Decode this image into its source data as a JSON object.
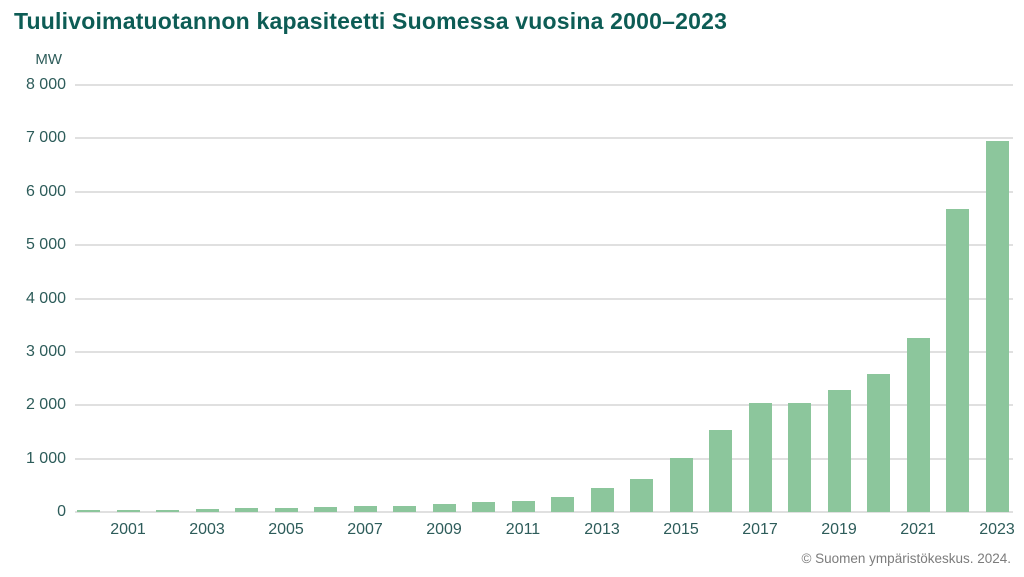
{
  "page": {
    "title": "Tuulivoimatuotannon kapasiteetti Suomessa vuosina 2000–2023",
    "credit": "© Suomen ympäristökeskus. 2024."
  },
  "chart_data": {
    "type": "bar",
    "title": "Tuulivoimatuotannon kapasiteetti Suomessa vuosina 2000–2023",
    "xlabel": "",
    "ylabel": "MW",
    "ylim": [
      0,
      8000
    ],
    "ytick_interval": 1000,
    "ytick_labels": [
      "0",
      "1 000",
      "2 000",
      "3 000",
      "4 000",
      "5 000",
      "6 000",
      "7 000",
      "8 000"
    ],
    "xtick_labels": [
      "2001",
      "2003",
      "2005",
      "2007",
      "2009",
      "2011",
      "2013",
      "2015",
      "2017",
      "2019",
      "2021",
      "2023"
    ],
    "grid": true,
    "legend": false,
    "categories": [
      "2000",
      "2001",
      "2002",
      "2003",
      "2004",
      "2005",
      "2006",
      "2007",
      "2008",
      "2009",
      "2010",
      "2011",
      "2012",
      "2013",
      "2014",
      "2015",
      "2016",
      "2017",
      "2018",
      "2019",
      "2020",
      "2021",
      "2022",
      "2023"
    ],
    "values": [
      38,
      39,
      43,
      52,
      82,
      82,
      86,
      110,
      119,
      147,
      197,
      199,
      288,
      448,
      627,
      1005,
      1533,
      2044,
      2041,
      2284,
      2586,
      3257,
      5677,
      6946
    ],
    "bar_color": "#8cc69c"
  },
  "colors": {
    "title": "#0d5c55",
    "axis_text": "#2d5c5a",
    "bar": "#8cc69c",
    "gridline": "#e0e0e0",
    "credit_text": "#7c7c7c",
    "background": "#ffffff"
  }
}
